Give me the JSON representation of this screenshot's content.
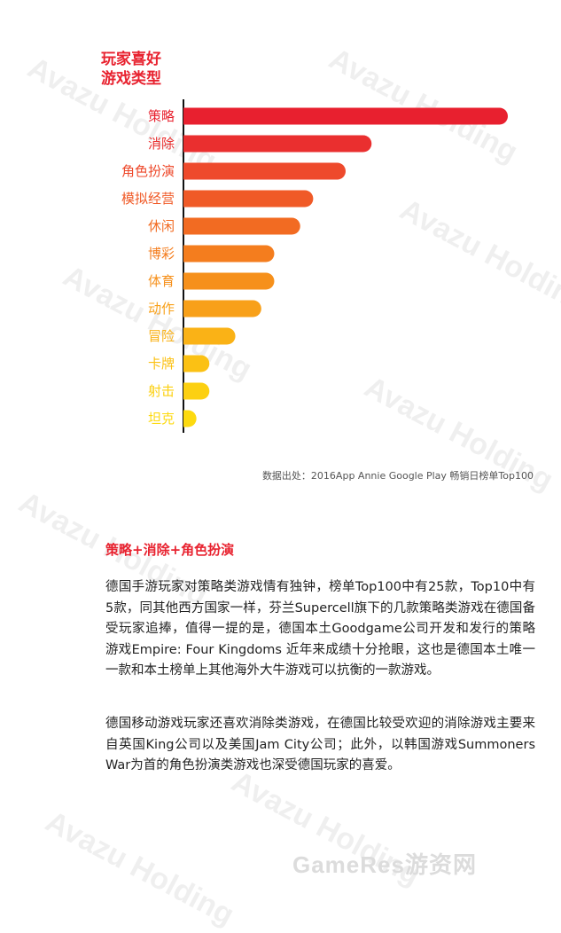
{
  "watermark": {
    "text": "Avazu Holding",
    "instances": [
      {
        "text": "Avazu Holding"
      },
      {
        "text": "Avazu Holding"
      },
      {
        "text": "Avazu Holding"
      },
      {
        "text": "Avazu Holding"
      },
      {
        "text": "Avazu Holding"
      },
      {
        "text": "Avazu Holding"
      },
      {
        "text": "Avazu Holding"
      },
      {
        "text": "Avazu Holding"
      }
    ]
  },
  "chart_data": {
    "type": "bar",
    "orientation": "horizontal",
    "title_lines": [
      "玩家喜好",
      "游戏类型"
    ],
    "categories": [
      "策略",
      "消除",
      "角色扮演",
      "模拟经营",
      "休闲",
      "博彩",
      "体育",
      "动作",
      "冒险",
      "卡牌",
      "射击",
      "坦克"
    ],
    "values": [
      25,
      14.5,
      12.5,
      10,
      9,
      7,
      7,
      6,
      4,
      2,
      2,
      1
    ],
    "bar_colors": [
      "#e8202f",
      "#ea2f2f",
      "#ee4a2c",
      "#f05a27",
      "#f26b22",
      "#f47d1e",
      "#f6901b",
      "#f8a019",
      "#fab216",
      "#fbc114",
      "#fcd011",
      "#fdda10"
    ],
    "label_color": "#e8222f",
    "axis_color": "#111111",
    "source": "数据出处：2016App Annie Google Play 畅销日榜单Top100"
  },
  "section": {
    "title": "策略+消除+角色扮演",
    "paragraph1": "德国手游玩家对策略类游戏情有独钟，榜单Top100中有25款，Top10中有5款，同其他西方国家一样，芬兰Supercell旗下的几款策略类游戏在德国备受玩家追捧，值得一提的是，德国本土Goodgame公司开发和发行的策略游戏Empire: Four Kingdoms 近年来成绩十分抢眼，这也是德国本土唯一一款和本土榜单上其他海外大牛游戏可以抗衡的一款游戏。",
    "paragraph2": "德国移动游戏玩家还喜欢消除类游戏，在德国比较受欢迎的消除游戏主要来自英国King公司以及美国Jam City公司；此外，以韩国游戏Summoners War为首的角色扮演类游戏也深受德国玩家的喜爱。"
  },
  "footer": {
    "logo_text": "GameRes游资网"
  }
}
